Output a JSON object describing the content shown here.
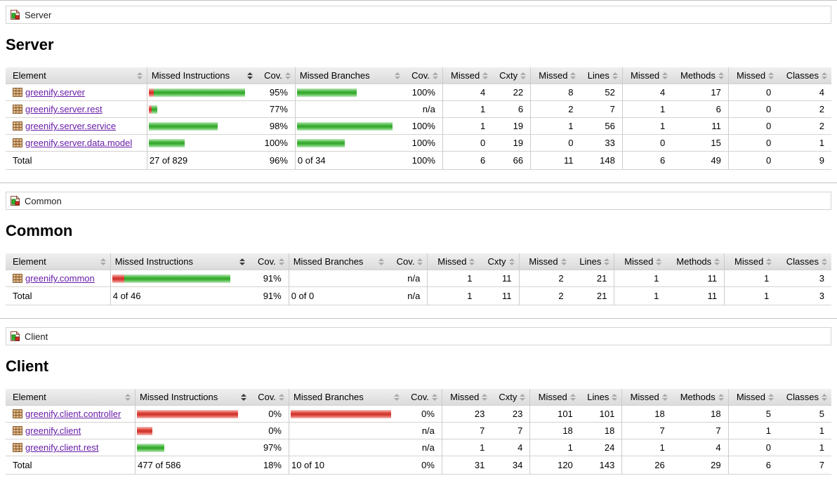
{
  "sorted_column_index": 1,
  "columns": [
    "Element",
    "Missed Instructions",
    "Cov.",
    "Missed Branches",
    "Cov.",
    "Missed",
    "Cxty",
    "Missed",
    "Lines",
    "Missed",
    "Methods",
    "Missed",
    "Classes"
  ],
  "colors": {
    "bar_red": "#e0352b",
    "bar_green": "#35b42d",
    "link": "#681da8"
  },
  "icons": {
    "breadcrumb": "report-icon",
    "package": "package-icon",
    "sort": "sort-arrows-icon"
  },
  "sections": [
    {
      "breadcrumb": "Server",
      "heading": "Server",
      "rows": [
        {
          "package": "greenify.server",
          "instr_bar": [
            [
              "red",
              7
            ],
            [
              "green",
              130
            ]
          ],
          "instr_cov": "95%",
          "branch_bar": [
            [
              "green",
              85
            ]
          ],
          "branch_cov": "100%",
          "counters": [
            "4",
            "22",
            "8",
            "52",
            "4",
            "17",
            "0",
            "4"
          ]
        },
        {
          "package": "greenify.server.rest",
          "instr_bar": [
            [
              "red",
              4
            ],
            [
              "green",
              8
            ]
          ],
          "instr_cov": "77%",
          "branch_bar": [],
          "branch_cov": "n/a",
          "counters": [
            "1",
            "6",
            "2",
            "7",
            "1",
            "6",
            "0",
            "2"
          ]
        },
        {
          "package": "greenify.server.service",
          "instr_bar": [
            [
              "green",
              98
            ]
          ],
          "instr_cov": "98%",
          "branch_bar": [
            [
              "green",
              136
            ]
          ],
          "branch_cov": "100%",
          "counters": [
            "1",
            "19",
            "1",
            "56",
            "1",
            "11",
            "0",
            "2"
          ]
        },
        {
          "package": "greenify.server.data.model",
          "instr_bar": [
            [
              "green",
              51
            ]
          ],
          "instr_cov": "100%",
          "branch_bar": [
            [
              "green",
              68
            ]
          ],
          "branch_cov": "100%",
          "counters": [
            "0",
            "19",
            "0",
            "33",
            "0",
            "15",
            "0",
            "1"
          ]
        }
      ],
      "total": {
        "label": "Total",
        "instr": "27 of 829",
        "instr_cov": "96%",
        "branch": "0 of 34",
        "branch_cov": "100%",
        "counters": [
          "6",
          "66",
          "11",
          "148",
          "6",
          "49",
          "0",
          "9"
        ]
      }
    },
    {
      "breadcrumb": "Common",
      "heading": "Common",
      "rows": [
        {
          "package": "greenify.common",
          "instr_bar": [
            [
              "red",
              17
            ],
            [
              "green",
              151
            ]
          ],
          "instr_cov": "91%",
          "branch_bar": [],
          "branch_cov": "n/a",
          "counters": [
            "1",
            "11",
            "2",
            "21",
            "1",
            "11",
            "1",
            "3"
          ]
        }
      ],
      "total": {
        "label": "Total",
        "instr": "4 of 46",
        "instr_cov": "91%",
        "branch": "0 of 0",
        "branch_cov": "n/a",
        "counters": [
          "1",
          "11",
          "2",
          "21",
          "1",
          "11",
          "1",
          "3"
        ]
      }
    },
    {
      "breadcrumb": "Client",
      "heading": "Client",
      "rows": [
        {
          "package": "greenify.client.controller",
          "instr_bar": [
            [
              "red",
              144
            ]
          ],
          "instr_cov": "0%",
          "branch_bar": [
            [
              "red",
              143
            ]
          ],
          "branch_cov": "0%",
          "counters": [
            "23",
            "23",
            "101",
            "101",
            "18",
            "18",
            "5",
            "5"
          ]
        },
        {
          "package": "greenify.client",
          "instr_bar": [
            [
              "red",
              22
            ]
          ],
          "instr_cov": "0%",
          "branch_bar": [],
          "branch_cov": "n/a",
          "counters": [
            "7",
            "7",
            "18",
            "18",
            "7",
            "7",
            "1",
            "1"
          ]
        },
        {
          "package": "greenify.client.rest",
          "instr_bar": [
            [
              "green",
              39
            ]
          ],
          "instr_cov": "97%",
          "branch_bar": [],
          "branch_cov": "n/a",
          "counters": [
            "1",
            "4",
            "1",
            "24",
            "1",
            "4",
            "0",
            "1"
          ]
        }
      ],
      "total": {
        "label": "Total",
        "instr": "477 of 586",
        "instr_cov": "18%",
        "branch": "10 of 10",
        "branch_cov": "0%",
        "counters": [
          "31",
          "34",
          "120",
          "143",
          "26",
          "29",
          "6",
          "7"
        ]
      }
    }
  ]
}
